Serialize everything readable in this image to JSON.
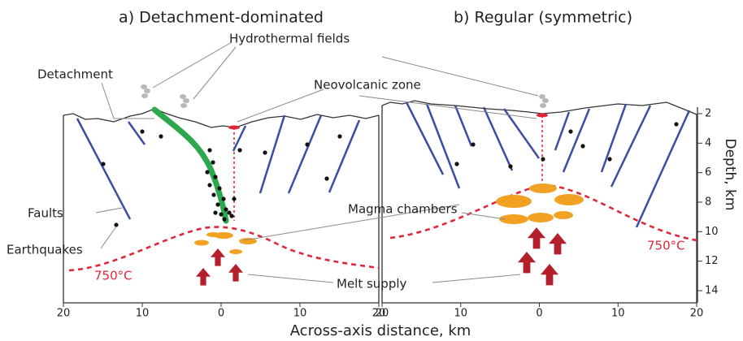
{
  "panels": [
    {
      "title": "a) Detachment-dominated",
      "x_ticks": [
        20,
        10,
        0,
        10,
        20
      ],
      "isotherm_label": "750°C"
    },
    {
      "title": "b) Regular (symmetric)",
      "x_ticks": [
        20,
        10,
        0,
        10,
        20
      ],
      "isotherm_label": "750°C"
    }
  ],
  "labels": {
    "hydrothermal": "Hydrothermal fields",
    "detachment": "Detachment",
    "neovolcanic": "Neovolcanic zone",
    "faults": "Faults",
    "earthquakes": "Earthquakes",
    "magma": "Magma chambers",
    "melt": "Melt supply"
  },
  "depth_axis": {
    "title": "Depth, km",
    "ticks": [
      2,
      4,
      6,
      8,
      10,
      12,
      14
    ]
  },
  "x_axis_title": "Across-axis distance, km"
}
